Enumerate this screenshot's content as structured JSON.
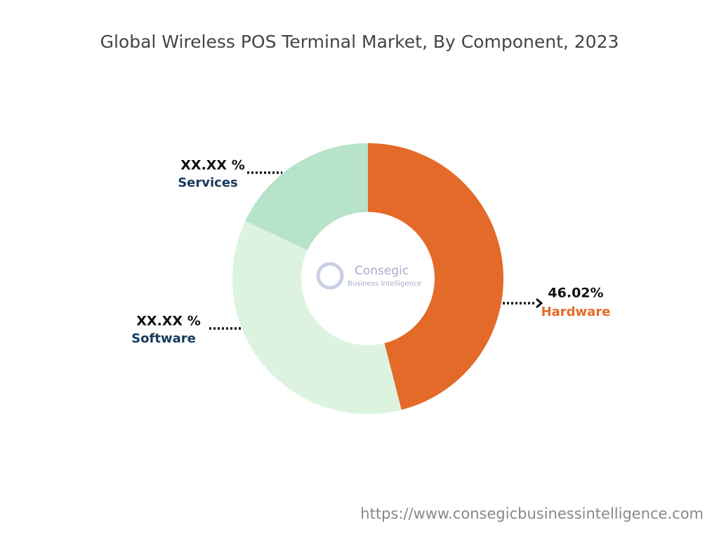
{
  "chart_data": {
    "type": "donut",
    "title": "Global Wireless POS Terminal Market, By Component, 2023",
    "categories": [
      "Hardware",
      "Software",
      "Services"
    ],
    "values": [
      46.02,
      35.98,
      18
    ],
    "value_labels": [
      "46.02%",
      "XX.XX %",
      "XX.XX %"
    ],
    "colors": [
      "#e36a28",
      "#dcf3e0",
      "#b6e3ca"
    ],
    "label_colors": [
      "#e36a28",
      "#173a5e",
      "#173a5e"
    ],
    "watermark": {
      "name": "Consegic",
      "tagline": "Business Intelligence"
    },
    "source_url": "https://www.consegicbusinessintelligence.com"
  }
}
